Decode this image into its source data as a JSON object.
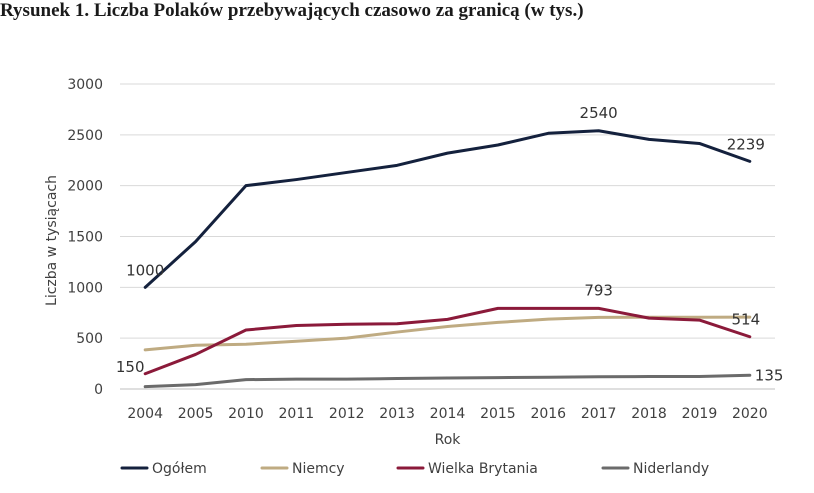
{
  "chart_data": {
    "type": "line",
    "title": "Rysunek 1. Liczba Polaków przebywających czasowo za granicą (w tys.)",
    "xlabel": "Rok",
    "ylabel": "Liczba w tysiącach",
    "categories": [
      "2004",
      "2005",
      "2010",
      "2011",
      "2012",
      "2013",
      "2014",
      "2015",
      "2016",
      "2017",
      "2018",
      "2019",
      "2020"
    ],
    "ylim": [
      0,
      3000
    ],
    "yticks": [
      0,
      500,
      1000,
      1500,
      2000,
      2500,
      3000
    ],
    "grid": true,
    "legend_position": "bottom",
    "series": [
      {
        "name": "Ogółem",
        "color": "#14213d",
        "values": [
          1000,
          1450,
          2000,
          2060,
          2130,
          2200,
          2320,
          2400,
          2515,
          2540,
          2455,
          2415,
          2239
        ]
      },
      {
        "name": "Niemcy",
        "color": "#bfab82",
        "values": [
          385,
          430,
          440,
          470,
          500,
          560,
          615,
          655,
          687,
          704,
          706,
          706,
          707
        ]
      },
      {
        "name": "Wielka Brytania",
        "color": "#8b1a3a",
        "values": [
          150,
          340,
          580,
          625,
          637,
          642,
          685,
          793,
          793,
          793,
          697,
          678,
          514
        ]
      },
      {
        "name": "Niderlandy",
        "color": "#6b6b6b",
        "values": [
          23,
          43,
          92,
          97,
          97,
          103,
          108,
          112,
          116,
          120,
          123,
          123,
          135
        ]
      }
    ],
    "annotations": [
      {
        "series": 0,
        "index": 0,
        "text": "1000"
      },
      {
        "series": 0,
        "index": 9,
        "text": "2540"
      },
      {
        "series": 0,
        "index": 12,
        "text": "2239"
      },
      {
        "series": 2,
        "index": 0,
        "text": "150"
      },
      {
        "series": 2,
        "index": 9,
        "text": "793"
      },
      {
        "series": 2,
        "index": 12,
        "text": "514"
      },
      {
        "series": 3,
        "index": 12,
        "text": "135"
      }
    ]
  }
}
